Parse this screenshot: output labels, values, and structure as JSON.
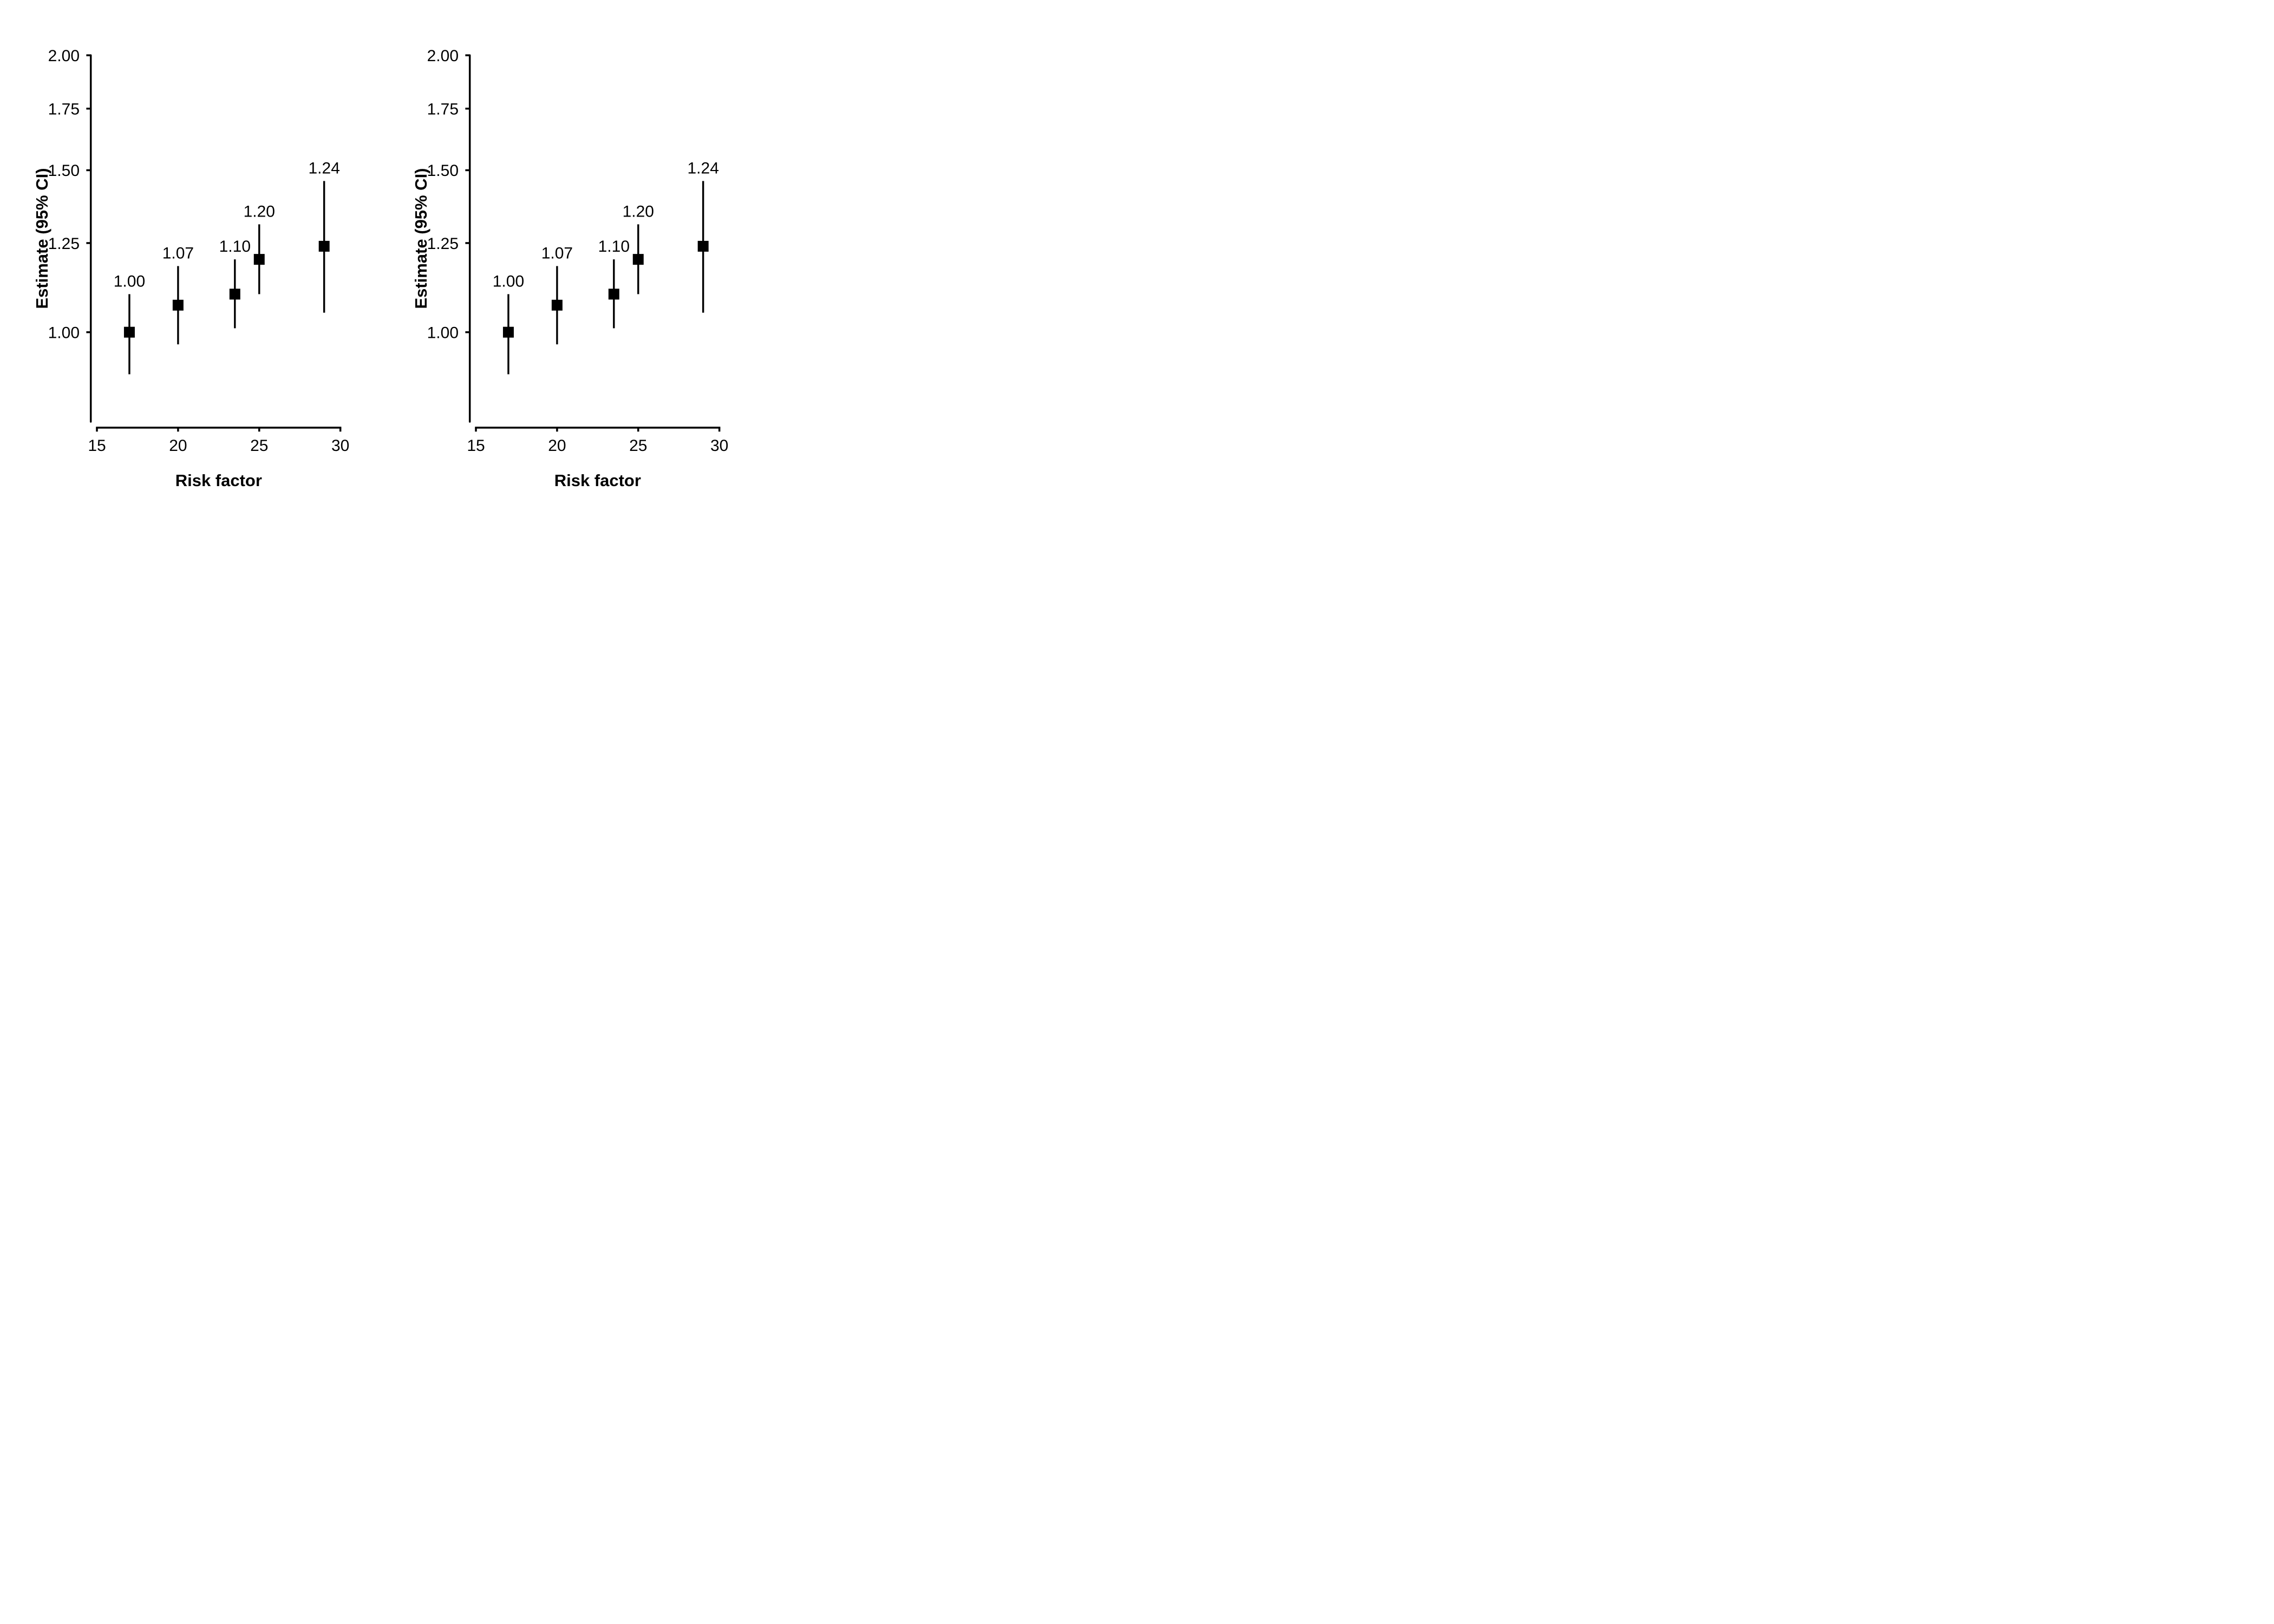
{
  "figure": {
    "background": "#ffffff",
    "ink": "#000000",
    "panel_count": 2
  },
  "chart_data": [
    {
      "id": "left",
      "type": "scatter",
      "subtype": "point-estimates-with-95ci-error-bars",
      "title": "",
      "xlabel": "Risk factor",
      "ylabel": "Estimate (95% CI)",
      "x_ticks": [
        15,
        20,
        25,
        30
      ],
      "x_tick_labels": [
        "15",
        "20",
        "25",
        "30"
      ],
      "xlim": [
        15,
        30
      ],
      "y_scale": "log",
      "y_ticks": [
        2.0,
        1.75,
        1.5,
        1.25,
        1.0
      ],
      "y_tick_labels": [
        "2.00",
        "1.75",
        "1.50",
        "1.25",
        "1.00"
      ],
      "y_axis_range": [
        0.8,
        2.0
      ],
      "grid": false,
      "legend": null,
      "marker": "filled-square",
      "marker_color": "#000000",
      "points": [
        {
          "x": 17,
          "estimate": 1.0,
          "ci_low": 0.9,
          "ci_high": 1.1,
          "label": "1.00"
        },
        {
          "x": 20,
          "estimate": 1.07,
          "ci_low": 0.97,
          "ci_high": 1.18,
          "label": "1.07"
        },
        {
          "x": 23.5,
          "estimate": 1.1,
          "ci_low": 1.01,
          "ci_high": 1.2,
          "label": "1.10"
        },
        {
          "x": 25,
          "estimate": 1.2,
          "ci_low": 1.1,
          "ci_high": 1.31,
          "label": "1.20"
        },
        {
          "x": 29,
          "estimate": 1.24,
          "ci_low": 1.05,
          "ci_high": 1.46,
          "label": "1.24"
        }
      ]
    },
    {
      "id": "right",
      "type": "scatter",
      "subtype": "point-estimates-with-95ci-error-bars",
      "title": "",
      "xlabel": "Risk factor",
      "ylabel": "Estimate (95% CI)",
      "x_ticks": [
        15,
        20,
        25,
        30
      ],
      "x_tick_labels": [
        "15",
        "20",
        "25",
        "30"
      ],
      "xlim": [
        15,
        30
      ],
      "y_scale": "log",
      "y_ticks": [
        2.0,
        1.75,
        1.5,
        1.25,
        1.0
      ],
      "y_tick_labels": [
        "2.00",
        "1.75",
        "1.50",
        "1.25",
        "1.00"
      ],
      "y_axis_range": [
        0.8,
        2.0
      ],
      "grid": false,
      "legend": null,
      "marker": "filled-square",
      "marker_color": "#000000",
      "points": [
        {
          "x": 17,
          "estimate": 1.0,
          "ci_low": 0.9,
          "ci_high": 1.1,
          "label": "1.00"
        },
        {
          "x": 20,
          "estimate": 1.07,
          "ci_low": 0.97,
          "ci_high": 1.18,
          "label": "1.07"
        },
        {
          "x": 23.5,
          "estimate": 1.1,
          "ci_low": 1.01,
          "ci_high": 1.2,
          "label": "1.10"
        },
        {
          "x": 25,
          "estimate": 1.2,
          "ci_low": 1.1,
          "ci_high": 1.31,
          "label": "1.20"
        },
        {
          "x": 29,
          "estimate": 1.24,
          "ci_low": 1.05,
          "ci_high": 1.46,
          "label": "1.24"
        }
      ]
    }
  ]
}
